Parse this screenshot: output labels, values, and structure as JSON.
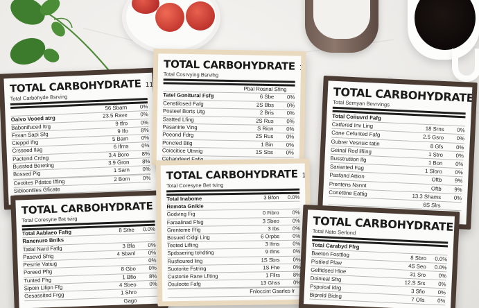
{
  "scene": {
    "background": "#eceae7",
    "props": {
      "leaf_sprig_icon": "leaf-sprig",
      "apples": "red-apples-on-plate",
      "milk": "milk-jar",
      "coffee": "black-coffee-mug"
    }
  },
  "labels": [
    {
      "title": "TOTAL CARBOHYDRATE",
      "unit": "11g",
      "subtitle": "Total Carbohyde Bsrving",
      "frame_color": "#4a3b33",
      "rows": [
        {
          "name": "",
          "amount": "",
          "percent": "",
          "style": "thick"
        },
        {
          "name": "",
          "amount": "56 Sbarn",
          "percent": "0%"
        },
        {
          "name": "Oaivo Vooed atrg",
          "amount": "23.5 Rave",
          "percent": "0%",
          "style": "bold"
        },
        {
          "name": "Babonifuced Itrg",
          "amount": "9 tfro",
          "percent": "0%"
        },
        {
          "name": "Fsvan Sapi Sfg",
          "amount": "9 Ifo",
          "percent": "8%"
        },
        {
          "name": "Cieppd Ifrg",
          "amount": "5 Barn",
          "percent": "0%"
        },
        {
          "name": "Crsseed Ilag",
          "amount": "6 Ifrns",
          "percent": "0%"
        },
        {
          "name": "Pactend Crdng",
          "amount": "3.4 Boro",
          "percent": "8%"
        },
        {
          "name": "Bussted Boreting",
          "amount": "3.9 Gron",
          "percent": "8%"
        },
        {
          "name": "Bossed Pig",
          "amount": "1 Sarn",
          "percent": "0%"
        },
        {
          "name": "",
          "amount": "",
          "percent": ""
        },
        {
          "name": "Ceotites Pdatce Iffing",
          "amount": "2 Born",
          "percent": "0%"
        },
        {
          "name": "Sibloontiles Gficate",
          "amount": "",
          "percent": ""
        }
      ]
    },
    {
      "title": "TOTAL CARBOHYDRATE",
      "unit": "11g",
      "subtitle": "Total Cosrvying Bsrvihg",
      "frame_color": "#e9d9bf",
      "rows": [
        {
          "name": "",
          "amount": "",
          "percent": "",
          "style": "thick"
        },
        {
          "name": "",
          "amount": "Pbal Rosnal Sfing",
          "percent": ""
        },
        {
          "name": "Tatel Gonitural Fsfg",
          "amount": "6 Sbe",
          "percent": "0%",
          "style": "bold"
        },
        {
          "name": "Censtilosed Fafg",
          "amount": "2S Bbs",
          "percent": "0%"
        },
        {
          "name": "Posteel Borts Utg",
          "amount": "2 Bris",
          "percent": "0%"
        },
        {
          "name": "Ssstted Lfing",
          "amount": "2S Rus",
          "percent": "0%"
        },
        {
          "name": "Pasanirie Ving",
          "amount": "S Rion",
          "percent": "0%"
        },
        {
          "name": "Poeond Fdrg",
          "amount": "2S Rus",
          "percent": "0%"
        },
        {
          "name": "Poncled Bilg",
          "amount": "1 Bin",
          "percent": "0%"
        },
        {
          "name": "Coiocitice Utnnig",
          "amount": "1S Sbs",
          "percent": "0%"
        },
        {
          "name": "Cehandeed Fafig",
          "amount": "",
          "percent": ""
        }
      ]
    },
    {
      "title": "TOTAL CARBOHYDRATE",
      "unit": "11g",
      "subtitle": "Total Sernyan Bevrvings",
      "frame_color": "#4a3b33",
      "rows": [
        {
          "name": "",
          "amount": "",
          "percent": "",
          "style": "thick"
        },
        {
          "name": "Total Coiiuvrd Fafg",
          "amount": "",
          "percent": "",
          "style": "bold"
        },
        {
          "name": "Catfered Inv Ling",
          "amount": "18 Srns",
          "percent": "0%"
        },
        {
          "name": "Cane Cefunted Fafg",
          "amount": "2.5 Gsro",
          "percent": "0%"
        },
        {
          "name": "Gubrer Vesnsic tatin",
          "amount": "8 Gfs",
          "percent": "0%"
        },
        {
          "name": "Geinal Rod lifiing",
          "amount": "1 Stro",
          "percent": "0%"
        },
        {
          "name": "Busstruttion Ifg",
          "amount": "1 Bon",
          "percent": "0%"
        },
        {
          "name": "Sarianted Fag",
          "amount": "1 Sloro",
          "percent": "0%"
        },
        {
          "name": "Pasfand Attion",
          "amount": "Oftb",
          "percent": "9%"
        },
        {
          "name": "Prentens Nsnnt",
          "amount": "Oftb",
          "percent": "9%"
        },
        {
          "name": "Conettine Eattig",
          "amount": "13.3 Shams",
          "percent": "0%"
        },
        {
          "name": "",
          "amount": "6S Slrs",
          "percent": ""
        }
      ]
    },
    {
      "title": "TOTAL CARBOHYDRATE",
      "unit": "11g",
      "subtitle": "Total Coresyne Bst tvirg",
      "frame_color": "#4a3b33",
      "rows": [
        {
          "name": "",
          "amount": "",
          "percent": "",
          "style": "thick"
        },
        {
          "name": "Total Aablaeo Fafig",
          "amount": "8 Sthe",
          "percent": "0.0%",
          "style": "bold"
        },
        {
          "name": "Ranenuro Bniks",
          "amount": "",
          "percent": "",
          "style": "bold"
        },
        {
          "name": "Tatlal Nard Fatlg",
          "amount": "3 Bfa",
          "percent": "0%"
        },
        {
          "name": "Pasevd Sfrig",
          "amount": "4 Sbanl",
          "percent": "0%"
        },
        {
          "name": "Pesrrie Vatiug",
          "amount": "",
          "percent": "0%"
        },
        {
          "name": "Poreed Pftg",
          "amount": "8 Gbo",
          "percent": "0%"
        },
        {
          "name": "Tunted Fhg",
          "amount": "1 Bflo",
          "percent": "8%"
        },
        {
          "name": "Sipoin Lllipn Ffg",
          "amount": "4 Sbeo",
          "percent": "0%"
        },
        {
          "name": "Gesassited Frgg",
          "amount": "1 Shro",
          "percent": ""
        },
        {
          "name": "",
          "amount": "Gago",
          "percent": ""
        }
      ]
    },
    {
      "title": "TOTAL CARBOHYDRATE",
      "unit": "11g",
      "subtitle": "Total Coresyne Bet tving",
      "frame_color": "#e9d9bf",
      "rows": [
        {
          "name": "",
          "amount": "",
          "percent": "",
          "style": "thick"
        },
        {
          "name": "Total Inabome",
          "amount": "3 Bfon",
          "percent": "0.0%",
          "style": "bold"
        },
        {
          "name": "Remota Gnikle",
          "amount": "",
          "percent": "",
          "style": "bold"
        },
        {
          "name": "Godving Fig",
          "amount": "0 Fibro",
          "percent": "0%"
        },
        {
          "name": "Faraalinad Ffsg",
          "amount": "3 Sbeo",
          "percent": "0%"
        },
        {
          "name": "Grenteme Ffig",
          "amount": "3 Ibs",
          "percent": "0%"
        },
        {
          "name": "Bosued Cidgi Ling",
          "amount": "6 Orpbs",
          "percent": "0%"
        },
        {
          "name": "Teoted Lifling",
          "amount": "3 Ifms",
          "percent": "0%"
        },
        {
          "name": "Spdssering tohdting",
          "amount": "9 Ifms",
          "percent": "0%"
        },
        {
          "name": "Rusfioured ling",
          "amount": "1S Sbrs",
          "percent": "0%"
        },
        {
          "name": "Suotorite Fstring",
          "amount": "1S Fhe",
          "percent": "0%"
        },
        {
          "name": "Custonie Rane Lfiting",
          "amount": "1 Fllrs",
          "percent": "8%"
        },
        {
          "name": "Osuloote Fafg",
          "amount": "13 Ghss",
          "percent": "0%"
        },
        {
          "name": "",
          "amount": "",
          "percent": ""
        },
        {
          "name": "",
          "amount": "Fnloccint Gsarles lr",
          "percent": ""
        }
      ]
    },
    {
      "title": "TOTAL CARBOHYDRATE",
      "unit": "11g",
      "subtitle": "Total Nato Serlond",
      "frame_color": "#4a3b33",
      "rows": [
        {
          "name": "",
          "amount": "",
          "percent": "",
          "style": "thick"
        },
        {
          "name": "Total Carabyd Ffrg",
          "amount": "",
          "percent": "",
          "style": "bold"
        },
        {
          "name": "Baeton Fosttlog",
          "amount": "8 Sbro",
          "percent": "0.0%"
        },
        {
          "name": "Pistiled Plaw",
          "amount": "4S Seo",
          "percent": "0.0%"
        },
        {
          "name": "Gelfidsed Hloe",
          "amount": "31 Sro",
          "percent": "0%"
        },
        {
          "name": "Doinieal Sfrg",
          "amount": "12.S Srs",
          "percent": "0%"
        },
        {
          "name": "Pspoical Idrg",
          "amount": "3 Sfio",
          "percent": "0%"
        },
        {
          "name": "Bipreld Bidng",
          "amount": "7 Ofa",
          "percent": "0%"
        }
      ]
    }
  ]
}
